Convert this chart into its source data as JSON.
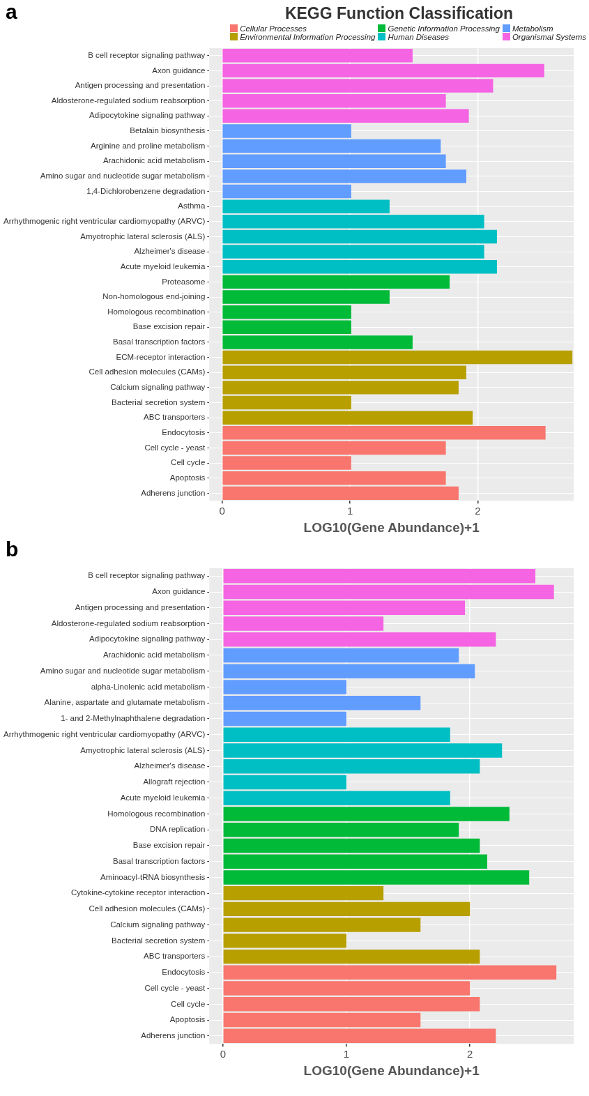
{
  "chart_data": [
    {
      "type": "bar",
      "orientation": "horizontal",
      "stacked": true,
      "title": "KEGG Function Classification",
      "xlabel": "LOG10(Gene Abundance)+1",
      "annotations": [
        "a"
      ],
      "legend": "top",
      "grid": true,
      "xlim": [
        -0.1,
        2.75
      ],
      "xticks": [
        0,
        1,
        2
      ],
      "categories": [
        "B cell receptor signaling pathway",
        "Axon guidance",
        "Antigen processing and presentation",
        "Aldosterone-regulated sodium reabsorption",
        "Adipocytokine signaling pathway",
        "Betalain biosynthesis",
        "Arginine and proline metabolism",
        "Arachidonic acid metabolism",
        "Amino sugar and nucleotide sugar metabolism",
        "1,4-Dichlorobenzene degradation",
        "Asthma",
        "Arrhythmogenic right ventricular cardiomyopathy (ARVC)",
        "Amyotrophic lateral sclerosis (ALS)",
        "Alzheimer's disease",
        "Acute myeloid leukemia",
        "Proteasome",
        "Non-homologous end-joining",
        "Homologous recombination",
        "Base excision repair",
        "Basal transcription factors",
        "ECM-receptor interaction",
        "Cell adhesion molecules (CAMs)",
        "Calcium signaling pathway",
        "Bacterial secretion system",
        "ABC transporters",
        "Endocytosis",
        "Cell cycle - yeast",
        "Cell cycle",
        "Apoptosis",
        "Adherens junction"
      ],
      "series": [
        {
          "name": "Cellular Processes",
          "color": "#f8766d",
          "values": [
            null,
            null,
            null,
            null,
            null,
            null,
            null,
            null,
            null,
            null,
            null,
            null,
            null,
            null,
            null,
            null,
            null,
            null,
            null,
            null,
            null,
            null,
            null,
            null,
            null,
            2.53,
            1.75,
            1.01,
            1.75,
            1.85
          ]
        },
        {
          "name": "Environmental Information Processing",
          "color": "#b79f00",
          "values": [
            null,
            null,
            null,
            null,
            null,
            null,
            null,
            null,
            null,
            null,
            null,
            null,
            null,
            null,
            null,
            null,
            null,
            null,
            null,
            null,
            2.74,
            1.91,
            1.85,
            1.01,
            1.96,
            null,
            null,
            null,
            null,
            null
          ]
        },
        {
          "name": "Genetic Information Processing",
          "color": "#00ba38",
          "values": [
            null,
            null,
            null,
            null,
            null,
            null,
            null,
            null,
            null,
            null,
            null,
            null,
            null,
            null,
            null,
            1.78,
            1.31,
            1.01,
            1.01,
            1.49,
            null,
            null,
            null,
            null,
            null,
            null,
            null,
            null,
            null,
            null
          ]
        },
        {
          "name": "Human Diseases",
          "color": "#00bfc4",
          "values": [
            null,
            null,
            null,
            null,
            null,
            null,
            null,
            null,
            null,
            null,
            1.31,
            2.05,
            2.15,
            2.05,
            2.15,
            null,
            null,
            null,
            null,
            null,
            null,
            null,
            null,
            null,
            null,
            null,
            null,
            null,
            null,
            null
          ]
        },
        {
          "name": "Metabolism",
          "color": "#619cff",
          "values": [
            null,
            null,
            null,
            null,
            null,
            1.01,
            1.71,
            1.75,
            1.91,
            1.01,
            null,
            null,
            null,
            null,
            null,
            null,
            null,
            null,
            null,
            null,
            null,
            null,
            null,
            null,
            null,
            null,
            null,
            null,
            null,
            null
          ]
        },
        {
          "name": "Organismal Systems",
          "color": "#f564e3",
          "values": [
            1.49,
            2.52,
            2.12,
            1.75,
            1.93,
            null,
            null,
            null,
            null,
            null,
            null,
            null,
            null,
            null,
            null,
            null,
            null,
            null,
            null,
            null,
            null,
            null,
            null,
            null,
            null,
            null,
            null,
            null,
            null,
            null
          ]
        }
      ]
    },
    {
      "type": "bar",
      "orientation": "horizontal",
      "stacked": true,
      "xlabel": "LOG10(Gene Abundance)+1",
      "annotations": [
        "b"
      ],
      "grid": true,
      "xlim": [
        -0.11,
        2.84
      ],
      "xticks": [
        0,
        1,
        2
      ],
      "categories": [
        "B cell receptor signaling pathway",
        "Axon guidance",
        "Antigen processing and presentation",
        "Aldosterone-regulated sodium reabsorption",
        "Adipocytokine signaling pathway",
        "Arachidonic acid metabolism",
        "Amino sugar and nucleotide sugar metabolism",
        "alpha-Linolenic acid metabolism",
        "Alanine, aspartate and glutamate metabolism",
        "1- and 2-Methylnaphthalene degradation",
        "Arrhythmogenic right ventricular cardiomyopathy (ARVC)",
        "Amyotrophic lateral sclerosis (ALS)",
        "Alzheimer's disease",
        "Allograft rejection",
        "Acute myeloid leukemia",
        "Homologous recombination",
        "DNA replication",
        "Base excision repair",
        "Basal transcription factors",
        "Aminoacyl-tRNA biosynthesis",
        "Cytokine-cytokine receptor interaction",
        "Cell adhesion molecules (CAMs)",
        "Calcium signaling pathway",
        "Bacterial secretion system",
        "ABC transporters",
        "Endocytosis",
        "Cell cycle - yeast",
        "Cell cycle",
        "Apoptosis",
        "Adherens junction"
      ],
      "series": [
        {
          "color": "#f8766d",
          "values": [
            null,
            null,
            null,
            null,
            null,
            null,
            null,
            null,
            null,
            null,
            null,
            null,
            null,
            null,
            null,
            null,
            null,
            null,
            null,
            null,
            null,
            null,
            null,
            null,
            null,
            2.7,
            2.0,
            2.08,
            1.6,
            2.21
          ]
        },
        {
          "color": "#b79f00",
          "values": [
            null,
            null,
            null,
            null,
            null,
            null,
            null,
            null,
            null,
            null,
            null,
            null,
            null,
            null,
            null,
            null,
            null,
            null,
            null,
            null,
            1.3,
            2.0,
            1.6,
            1.0,
            2.08,
            null,
            null,
            null,
            null,
            null
          ]
        },
        {
          "color": "#00ba38",
          "values": [
            null,
            null,
            null,
            null,
            null,
            null,
            null,
            null,
            null,
            null,
            null,
            null,
            null,
            null,
            null,
            2.32,
            1.91,
            2.08,
            2.14,
            2.48,
            null,
            null,
            null,
            null,
            null,
            null,
            null,
            null,
            null,
            null
          ]
        },
        {
          "color": "#00bfc4",
          "values": [
            null,
            null,
            null,
            null,
            null,
            null,
            null,
            null,
            null,
            null,
            1.84,
            2.26,
            2.08,
            1.0,
            1.84,
            null,
            null,
            null,
            null,
            null,
            null,
            null,
            null,
            null,
            null,
            null,
            null,
            null,
            null,
            null
          ]
        },
        {
          "color": "#619cff",
          "values": [
            null,
            null,
            null,
            null,
            null,
            1.91,
            2.04,
            1.0,
            1.6,
            1.0,
            null,
            null,
            null,
            null,
            null,
            null,
            null,
            null,
            null,
            null,
            null,
            null,
            null,
            null,
            null,
            null,
            null,
            null,
            null,
            null
          ]
        },
        {
          "color": "#f564e3",
          "values": [
            2.53,
            2.68,
            1.96,
            1.3,
            2.21,
            null,
            null,
            null,
            null,
            null,
            null,
            null,
            null,
            null,
            null,
            null,
            null,
            null,
            null,
            null,
            null,
            null,
            null,
            null,
            null,
            null,
            null,
            null,
            null,
            null
          ]
        }
      ]
    }
  ]
}
